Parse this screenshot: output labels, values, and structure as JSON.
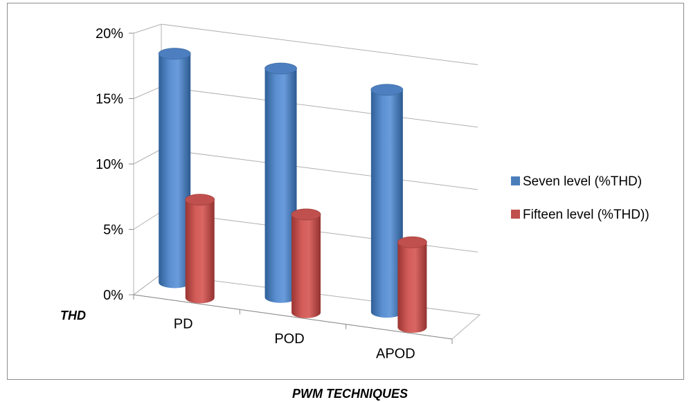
{
  "chart_data": {
    "type": "bar",
    "style": "3d-cylinder",
    "categories": [
      "PD",
      "POD",
      "APOD"
    ],
    "series": [
      {
        "name": "Seven level (%THD)",
        "values": [
          17.5,
          17.5,
          17.0
        ],
        "color": "#4a7ebb"
      },
      {
        "name": "Fifteen level (%THD))",
        "values": [
          7.5,
          7.5,
          6.5
        ],
        "color": "#c0504d"
      }
    ],
    "yticks": [
      "0%",
      "5%",
      "10%",
      "15%",
      "20%"
    ],
    "ylim": [
      0,
      20
    ],
    "ylabel": "THD",
    "xlabel": "PWM TECHNIQUES",
    "grid": true,
    "legend_position": "right"
  }
}
